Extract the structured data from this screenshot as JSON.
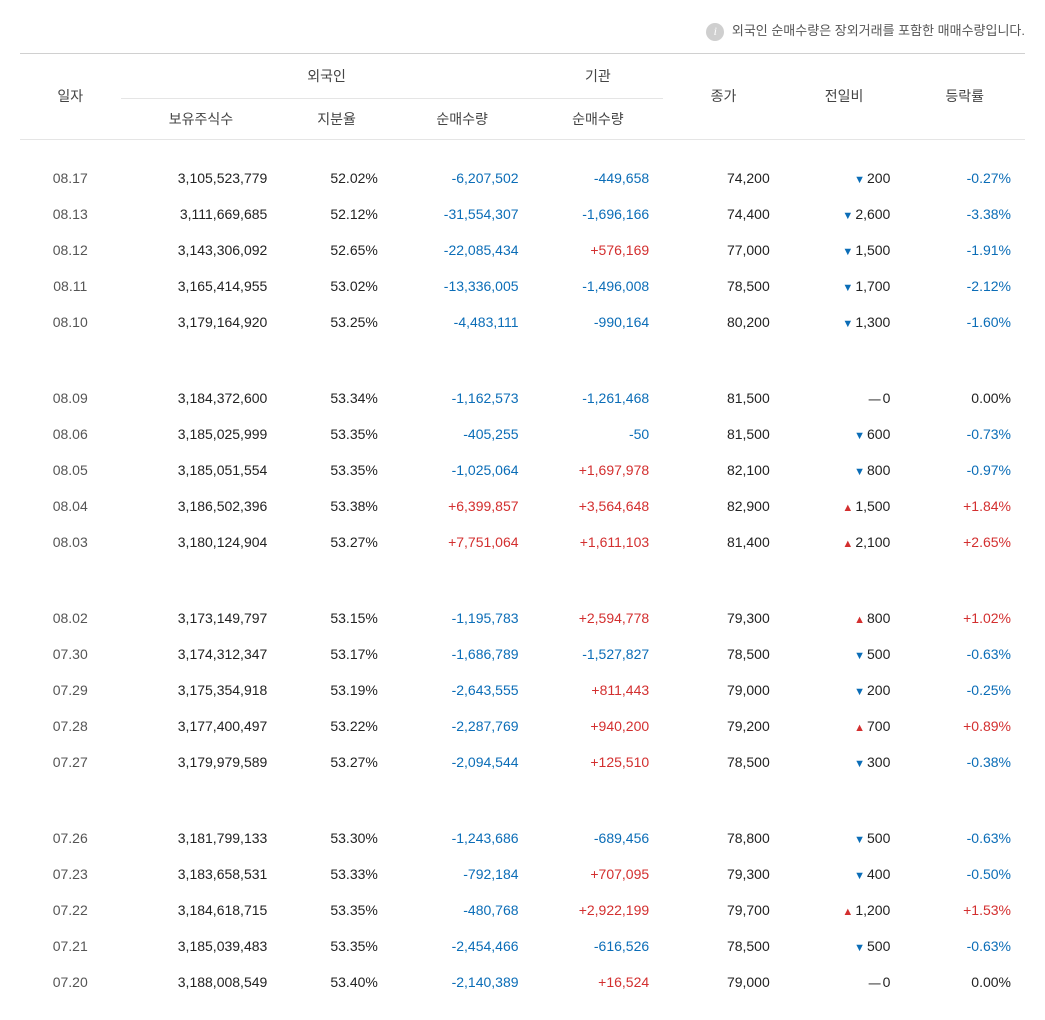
{
  "info_text": "외국인 순매수량은 장외거래를 포함한 매매수량입니다.",
  "headers": {
    "date": "일자",
    "foreigner_group": "외국인",
    "institution_group": "기관",
    "shares_held": "보유주식수",
    "share_ratio": "지분율",
    "foreigner_net": "순매수량",
    "institution_net": "순매수량",
    "close": "종가",
    "change": "전일비",
    "change_pct": "등락률"
  },
  "colors": {
    "negative": "#0b6db7",
    "positive": "#d32f2f",
    "text": "#222222",
    "text_muted": "#555555",
    "border": "#d0d0d0",
    "border_light": "#e5e5e5"
  },
  "groups": [
    [
      {
        "date": "08.17",
        "shares": "3,105,523,779",
        "ratio": "52.02%",
        "fnet": "-6,207,502",
        "fnet_dir": "neg",
        "inet": "-449,658",
        "inet_dir": "neg",
        "close": "74,200",
        "chg": "200",
        "chg_dir": "down",
        "pct": "-0.27%",
        "pct_dir": "neg"
      },
      {
        "date": "08.13",
        "shares": "3,111,669,685",
        "ratio": "52.12%",
        "fnet": "-31,554,307",
        "fnet_dir": "neg",
        "inet": "-1,696,166",
        "inet_dir": "neg",
        "close": "74,400",
        "chg": "2,600",
        "chg_dir": "down",
        "pct": "-3.38%",
        "pct_dir": "neg"
      },
      {
        "date": "08.12",
        "shares": "3,143,306,092",
        "ratio": "52.65%",
        "fnet": "-22,085,434",
        "fnet_dir": "neg",
        "inet": "+576,169",
        "inet_dir": "pos",
        "close": "77,000",
        "chg": "1,500",
        "chg_dir": "down",
        "pct": "-1.91%",
        "pct_dir": "neg"
      },
      {
        "date": "08.11",
        "shares": "3,165,414,955",
        "ratio": "53.02%",
        "fnet": "-13,336,005",
        "fnet_dir": "neg",
        "inet": "-1,496,008",
        "inet_dir": "neg",
        "close": "78,500",
        "chg": "1,700",
        "chg_dir": "down",
        "pct": "-2.12%",
        "pct_dir": "neg"
      },
      {
        "date": "08.10",
        "shares": "3,179,164,920",
        "ratio": "53.25%",
        "fnet": "-4,483,111",
        "fnet_dir": "neg",
        "inet": "-990,164",
        "inet_dir": "neg",
        "close": "80,200",
        "chg": "1,300",
        "chg_dir": "down",
        "pct": "-1.60%",
        "pct_dir": "neg"
      }
    ],
    [
      {
        "date": "08.09",
        "shares": "3,184,372,600",
        "ratio": "53.34%",
        "fnet": "-1,162,573",
        "fnet_dir": "neg",
        "inet": "-1,261,468",
        "inet_dir": "neg",
        "close": "81,500",
        "chg": "0",
        "chg_dir": "flat",
        "pct": "0.00%",
        "pct_dir": "neu"
      },
      {
        "date": "08.06",
        "shares": "3,185,025,999",
        "ratio": "53.35%",
        "fnet": "-405,255",
        "fnet_dir": "neg",
        "inet": "-50",
        "inet_dir": "neg",
        "close": "81,500",
        "chg": "600",
        "chg_dir": "down",
        "pct": "-0.73%",
        "pct_dir": "neg"
      },
      {
        "date": "08.05",
        "shares": "3,185,051,554",
        "ratio": "53.35%",
        "fnet": "-1,025,064",
        "fnet_dir": "neg",
        "inet": "+1,697,978",
        "inet_dir": "pos",
        "close": "82,100",
        "chg": "800",
        "chg_dir": "down",
        "pct": "-0.97%",
        "pct_dir": "neg"
      },
      {
        "date": "08.04",
        "shares": "3,186,502,396",
        "ratio": "53.38%",
        "fnet": "+6,399,857",
        "fnet_dir": "pos",
        "inet": "+3,564,648",
        "inet_dir": "pos",
        "close": "82,900",
        "chg": "1,500",
        "chg_dir": "up",
        "pct": "+1.84%",
        "pct_dir": "pos"
      },
      {
        "date": "08.03",
        "shares": "3,180,124,904",
        "ratio": "53.27%",
        "fnet": "+7,751,064",
        "fnet_dir": "pos",
        "inet": "+1,611,103",
        "inet_dir": "pos",
        "close": "81,400",
        "chg": "2,100",
        "chg_dir": "up",
        "pct": "+2.65%",
        "pct_dir": "pos"
      }
    ],
    [
      {
        "date": "08.02",
        "shares": "3,173,149,797",
        "ratio": "53.15%",
        "fnet": "-1,195,783",
        "fnet_dir": "neg",
        "inet": "+2,594,778",
        "inet_dir": "pos",
        "close": "79,300",
        "chg": "800",
        "chg_dir": "up",
        "pct": "+1.02%",
        "pct_dir": "pos"
      },
      {
        "date": "07.30",
        "shares": "3,174,312,347",
        "ratio": "53.17%",
        "fnet": "-1,686,789",
        "fnet_dir": "neg",
        "inet": "-1,527,827",
        "inet_dir": "neg",
        "close": "78,500",
        "chg": "500",
        "chg_dir": "down",
        "pct": "-0.63%",
        "pct_dir": "neg"
      },
      {
        "date": "07.29",
        "shares": "3,175,354,918",
        "ratio": "53.19%",
        "fnet": "-2,643,555",
        "fnet_dir": "neg",
        "inet": "+811,443",
        "inet_dir": "pos",
        "close": "79,000",
        "chg": "200",
        "chg_dir": "down",
        "pct": "-0.25%",
        "pct_dir": "neg"
      },
      {
        "date": "07.28",
        "shares": "3,177,400,497",
        "ratio": "53.22%",
        "fnet": "-2,287,769",
        "fnet_dir": "neg",
        "inet": "+940,200",
        "inet_dir": "pos",
        "close": "79,200",
        "chg": "700",
        "chg_dir": "up",
        "pct": "+0.89%",
        "pct_dir": "pos"
      },
      {
        "date": "07.27",
        "shares": "3,179,979,589",
        "ratio": "53.27%",
        "fnet": "-2,094,544",
        "fnet_dir": "neg",
        "inet": "+125,510",
        "inet_dir": "pos",
        "close": "78,500",
        "chg": "300",
        "chg_dir": "down",
        "pct": "-0.38%",
        "pct_dir": "neg"
      }
    ],
    [
      {
        "date": "07.26",
        "shares": "3,181,799,133",
        "ratio": "53.30%",
        "fnet": "-1,243,686",
        "fnet_dir": "neg",
        "inet": "-689,456",
        "inet_dir": "neg",
        "close": "78,800",
        "chg": "500",
        "chg_dir": "down",
        "pct": "-0.63%",
        "pct_dir": "neg"
      },
      {
        "date": "07.23",
        "shares": "3,183,658,531",
        "ratio": "53.33%",
        "fnet": "-792,184",
        "fnet_dir": "neg",
        "inet": "+707,095",
        "inet_dir": "pos",
        "close": "79,300",
        "chg": "400",
        "chg_dir": "down",
        "pct": "-0.50%",
        "pct_dir": "neg"
      },
      {
        "date": "07.22",
        "shares": "3,184,618,715",
        "ratio": "53.35%",
        "fnet": "-480,768",
        "fnet_dir": "neg",
        "inet": "+2,922,199",
        "inet_dir": "pos",
        "close": "79,700",
        "chg": "1,200",
        "chg_dir": "up",
        "pct": "+1.53%",
        "pct_dir": "pos"
      },
      {
        "date": "07.21",
        "shares": "3,185,039,483",
        "ratio": "53.35%",
        "fnet": "-2,454,466",
        "fnet_dir": "neg",
        "inet": "-616,526",
        "inet_dir": "neg",
        "close": "78,500",
        "chg": "500",
        "chg_dir": "down",
        "pct": "-0.63%",
        "pct_dir": "neg"
      },
      {
        "date": "07.20",
        "shares": "3,188,008,549",
        "ratio": "53.40%",
        "fnet": "-2,140,389",
        "fnet_dir": "neg",
        "inet": "+16,524",
        "inet_dir": "pos",
        "close": "79,000",
        "chg": "0",
        "chg_dir": "flat",
        "pct": "0.00%",
        "pct_dir": "neu"
      }
    ]
  ]
}
